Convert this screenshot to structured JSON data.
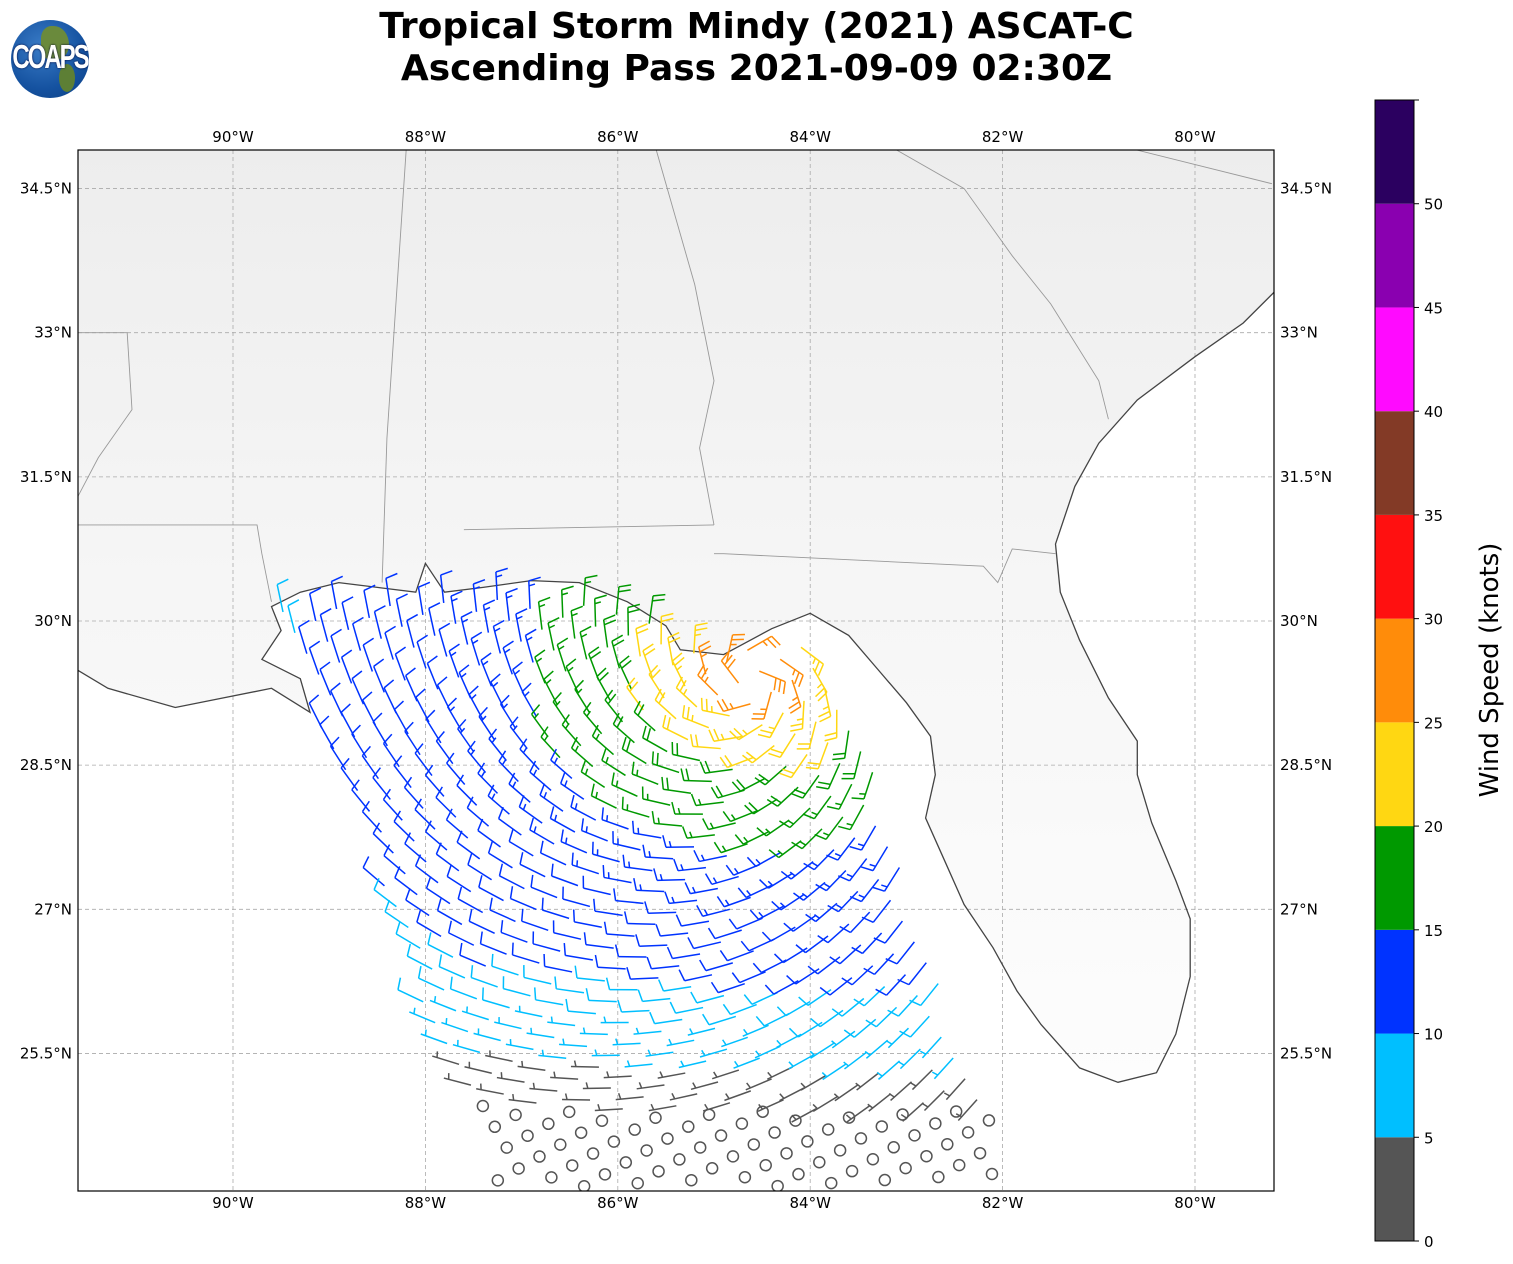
{
  "title": {
    "line1": "Tropical Storm Mindy (2021) ASCAT-C",
    "line2": "Ascending Pass 2021-09-09 02:30Z"
  },
  "logo_text": "COAPS",
  "map": {
    "lon_range": [
      -91.61,
      -79.18
    ],
    "lat_range": [
      24.06,
      34.9
    ],
    "lon_ticks": [
      -90,
      -88,
      -86,
      -84,
      -82,
      -80
    ],
    "lon_tick_labels": [
      "90°W",
      "88°W",
      "86°W",
      "84°W",
      "82°W",
      "80°W"
    ],
    "lat_ticks": [
      34.5,
      33,
      31.5,
      30,
      28.5,
      27,
      25.5
    ],
    "lat_tick_labels": [
      "34.5°N",
      "33°N",
      "31.5°N",
      "30°N",
      "28.5°N",
      "27°N",
      "25.5°N"
    ]
  },
  "wind_field": {
    "storm_center_lon": -84.6,
    "storm_center_lat": 29.4,
    "peak_speed_kt": 30,
    "units": "knots"
  },
  "colorbar": {
    "label": "Wind Speed (knots)",
    "bounds": [
      0,
      5,
      10,
      15,
      20,
      25,
      30,
      35,
      40,
      45,
      50,
      55
    ],
    "tick_labels": [
      "0",
      "5",
      "10",
      "15",
      "20",
      "25",
      "30",
      "35",
      "40",
      "45",
      "50"
    ],
    "colors": [
      "#555555",
      "#00bfff",
      "#0033ff",
      "#009900",
      "#ffd712",
      "#ff8c0a",
      "#ff1010",
      "#833a26",
      "#ff0aff",
      "#8a00b0",
      "#2b0060"
    ]
  }
}
